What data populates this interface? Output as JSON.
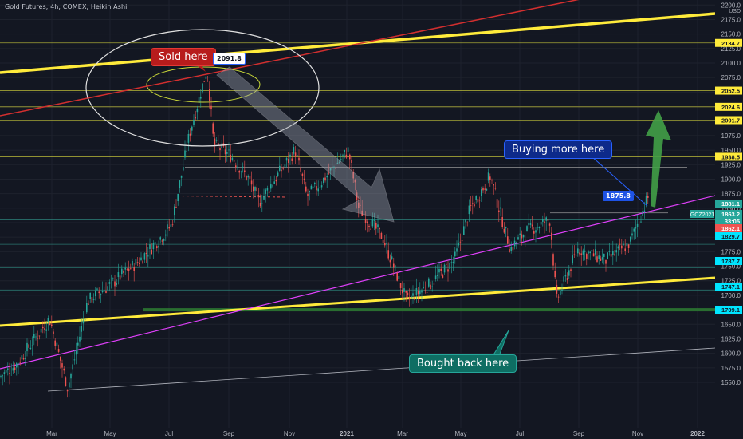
{
  "header": {
    "title": "Gold Futures, 4h, COMEX, Heikin Ashi",
    "currency": "USD"
  },
  "annotations": {
    "sold": "Sold here",
    "buy": "Buying more here",
    "bought": "Bought back here",
    "peak_value": "2091.8",
    "current_value": "1875.8"
  },
  "colors": {
    "background": "#131722",
    "up_candle": "#26a69a",
    "down_candle": "#ef5350",
    "support": "#ffeb3b",
    "channel": "#e040fb",
    "red_trend": "#d32f2f"
  },
  "chart_data": {
    "type": "candlestick",
    "title": "Gold Futures, 4h, COMEX, Heikin Ashi",
    "x_tick_labels": [
      "Mar",
      "May",
      "Jul",
      "Sep",
      "Nov",
      "2021",
      "Mar",
      "May",
      "Jul",
      "Sep",
      "Nov",
      "2022"
    ],
    "y_ticks": [
      1550,
      1575,
      1600,
      1625,
      1650,
      1675,
      1700,
      1725,
      1750,
      1775,
      1800,
      1825,
      1850,
      1875,
      1900,
      1925,
      1950,
      1975,
      2000,
      2025,
      2050,
      2075,
      2100,
      2125,
      2150,
      2175,
      2200
    ],
    "y_range": [
      1530,
      2205
    ],
    "price_path": [
      [
        "Jan",
        1560
      ],
      [
        "Feb",
        1580
      ],
      [
        "Mar",
        1660
      ],
      [
        "Mar",
        1540
      ],
      [
        "Apr",
        1690
      ],
      [
        "May",
        1720
      ],
      [
        "Jun",
        1760
      ],
      [
        "Jul",
        1820
      ],
      [
        "Jul",
        1980
      ],
      [
        "Aug",
        2091.8
      ],
      [
        "Aug",
        1960
      ],
      [
        "Sep",
        1940
      ],
      [
        "Oct",
        1900
      ],
      [
        "Nov",
        1860
      ],
      [
        "Nov",
        1950
      ],
      [
        "Dec",
        1870
      ],
      [
        "Dec",
        1890
      ],
      [
        "2021",
        1950
      ],
      [
        "Jan",
        1850
      ],
      [
        "Feb",
        1800
      ],
      [
        "Mar",
        1690
      ],
      [
        "Mar",
        1720
      ],
      [
        "Apr",
        1760
      ],
      [
        "May",
        1850
      ],
      [
        "Jun",
        1905
      ],
      [
        "Jun",
        1780
      ],
      [
        "Jul",
        1810
      ],
      [
        "Aug",
        1830
      ],
      [
        "Aug",
        1690
      ],
      [
        "Sep",
        1780
      ],
      [
        "Oct",
        1760
      ],
      [
        "Oct",
        1790
      ],
      [
        "Nov",
        1875.8
      ]
    ],
    "price_labels": [
      {
        "value": "2134.7",
        "color": "#ffeb3b",
        "text_color": "#131722"
      },
      {
        "value": "2052.5",
        "color": "#ffeb3b",
        "text_color": "#131722"
      },
      {
        "value": "2024.6",
        "color": "#ffeb3b",
        "text_color": "#131722"
      },
      {
        "value": "2001.7",
        "color": "#ffeb3b",
        "text_color": "#131722"
      },
      {
        "value": "1938.5",
        "color": "#ffeb3b",
        "text_color": "#131722"
      },
      {
        "value": "1881.1",
        "color": "#26a69a",
        "text_color": "#ffffff"
      },
      {
        "value": "1863.2",
        "color": "#26a69a",
        "text_color": "#ffffff"
      },
      {
        "value": "33:05",
        "color": "#26a69a",
        "text_color": "#ffffff"
      },
      {
        "value": "1862.1",
        "color": "#ef5350",
        "text_color": "#ffffff"
      },
      {
        "value": "1829.7",
        "color": "#00e5ff",
        "text_color": "#131722"
      },
      {
        "value": "1787.7",
        "color": "#00e5ff",
        "text_color": "#131722"
      },
      {
        "value": "1747.1",
        "color": "#00e5ff",
        "text_color": "#131722"
      },
      {
        "value": "1709.1",
        "color": "#00e5ff",
        "text_color": "#131722"
      }
    ],
    "symbol_tag": "GCZ2021",
    "horizontal_levels": [
      2134.7,
      2052.5,
      2024.6,
      2001.7,
      1938.5,
      1829.7,
      1787.7,
      1747.1,
      1709.1
    ],
    "support_zone": 1675
  }
}
